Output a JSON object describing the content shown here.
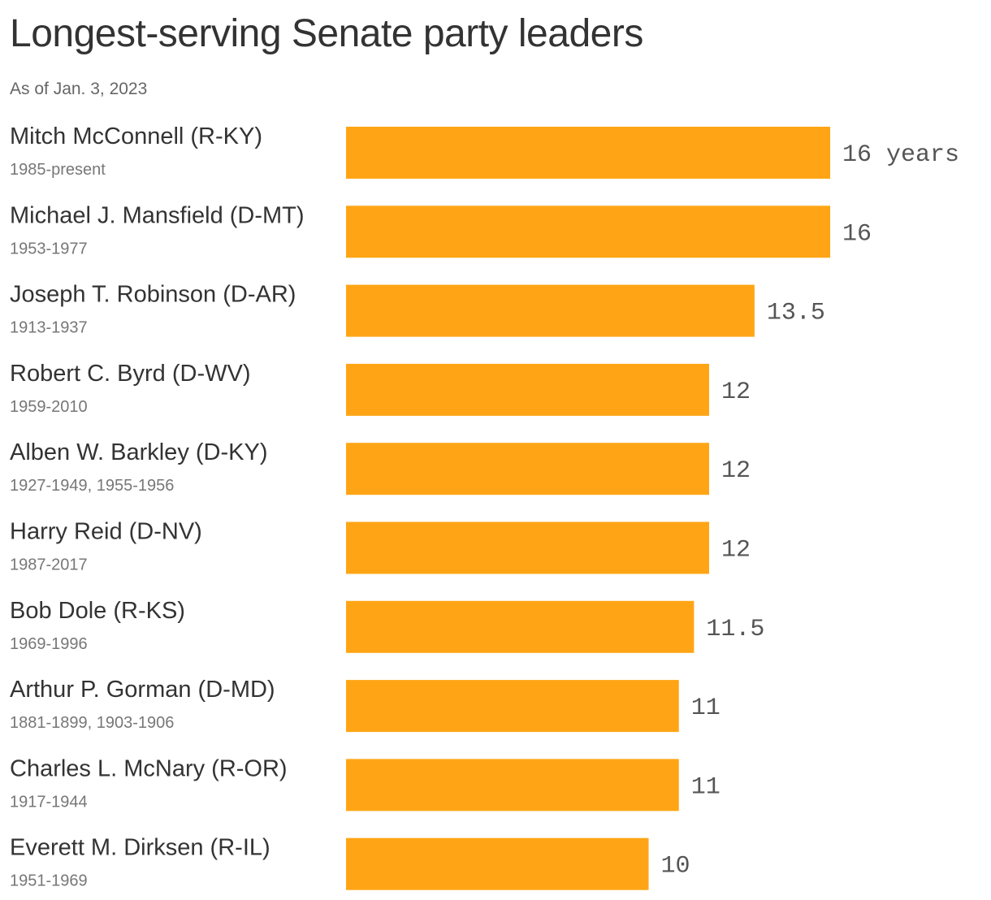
{
  "header": {
    "title": "Longest-serving Senate party leaders",
    "subtitle": "As of Jan. 3, 2023"
  },
  "colors": {
    "bar": "#FFA515",
    "title": "#333333",
    "subtitle": "#666666",
    "value_label": "#555555"
  },
  "chart_data": {
    "type": "bar",
    "orientation": "horizontal",
    "title": "Longest-serving Senate party leaders",
    "subtitle": "As of Jan. 3, 2023",
    "value_unit": "years",
    "xlim": [
      0,
      16
    ],
    "grid": false,
    "legend": "none",
    "categories": [
      "Mitch McConnell (R-KY)",
      "Michael J. Mansfield (D-MT)",
      "Joseph T. Robinson (D-AR)",
      "Robert C. Byrd (D-WV)",
      "Alben W. Barkley (D-KY)",
      "Harry Reid (D-NV)",
      "Bob Dole (R-KS)",
      "Arthur P. Gorman (D-MD)",
      "Charles L. McNary (R-OR)",
      "Everett M. Dirksen (R-IL)"
    ],
    "terms": [
      "1985-present",
      "1953-1977",
      "1913-1937",
      "1959-2010",
      "1927-1949, 1955-1956",
      "1987-2017",
      "1969-1996",
      "1881-1899, 1903-1906",
      "1917-1944",
      "1951-1969"
    ],
    "values": [
      16,
      16,
      13.5,
      12,
      12,
      12,
      11.5,
      11,
      11,
      10
    ],
    "value_labels": [
      "16 years",
      "16",
      "13.5",
      "12",
      "12",
      "12",
      "11.5",
      "11",
      "11",
      "10"
    ]
  }
}
